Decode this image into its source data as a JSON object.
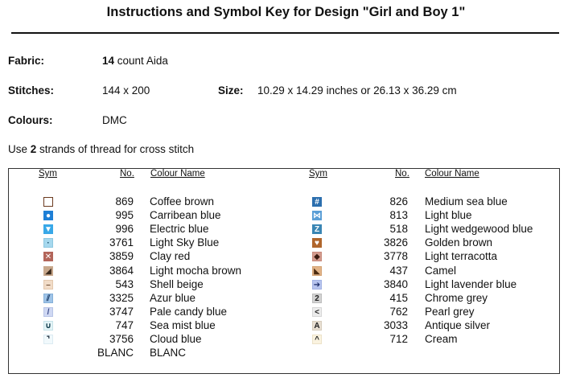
{
  "title": "Instructions and Symbol Key for Design \"Girl and Boy 1\"",
  "fabric": {
    "label": "Fabric:",
    "count": "14",
    "rest": " count Aida"
  },
  "stitches": {
    "label": "Stitches:",
    "value": "144 x 200"
  },
  "size": {
    "label": "Size:",
    "value": "10.29 x 14.29 inches or 26.13 x 36.29 cm"
  },
  "colours": {
    "label": "Colours:",
    "value": "DMC"
  },
  "note": {
    "pre": "Use ",
    "strands": "2",
    "post": " strands of thread for cross stitch"
  },
  "headers": {
    "sym": "Sym",
    "no": "No.",
    "name": "Colour Name"
  },
  "left_column": [
    {
      "no": "869",
      "name": "Coffee brown",
      "icon": "hollow-square-icon",
      "glyph": "",
      "bg": "#ffffff",
      "border": "#6b3a1f",
      "fg": "#6b3a1f"
    },
    {
      "no": "995",
      "name": "Carribean blue",
      "icon": "circle-icon",
      "glyph": "●",
      "bg": "#1e7fd6",
      "border": "#1e7fd6",
      "fg": "#ffffff"
    },
    {
      "no": "996",
      "name": "Electric blue",
      "icon": "triangle-down-icon",
      "glyph": "▼",
      "bg": "#38a8e8",
      "border": "#38a8e8",
      "fg": "#ffffff"
    },
    {
      "no": "3761",
      "name": "Light Sky Blue",
      "icon": "dot-icon",
      "glyph": "·",
      "bg": "#a6d8ee",
      "border": "#8ec8e0",
      "fg": "#1a4a66"
    },
    {
      "no": "3859",
      "name": "Clay red",
      "icon": "cross-icon",
      "glyph": "✕",
      "bg": "#b3655a",
      "border": "#b3655a",
      "fg": "#ffffff"
    },
    {
      "no": "3864",
      "name": "Light mocha brown",
      "icon": "diagonal-half-icon",
      "glyph": "◢",
      "bg": "#c8a88c",
      "border": "#c8a88c",
      "fg": "#3a2a1c"
    },
    {
      "no": "543",
      "name": "Shell beige",
      "icon": "dash-icon",
      "glyph": "–",
      "bg": "#f1dcc8",
      "border": "#e3c8ae",
      "fg": "#6b4a30"
    },
    {
      "no": "3325",
      "name": "Azur blue",
      "icon": "double-slash-icon",
      "glyph": "⫽",
      "bg": "#9fc4e8",
      "border": "#86b0d8",
      "fg": "#1a3a66"
    },
    {
      "no": "3747",
      "name": "Pale candy blue",
      "icon": "slash-icon",
      "glyph": "/",
      "bg": "#cfd8f3",
      "border": "#b8c4e6",
      "fg": "#3a4a88"
    },
    {
      "no": "747",
      "name": "Sea mist blue",
      "icon": "u-shape-icon",
      "glyph": "∪",
      "bg": "#e4f4f7",
      "border": "#c6e2e8",
      "fg": "#0e3a4a"
    },
    {
      "no": "3756",
      "name": "Cloud blue",
      "icon": "corner-icon",
      "glyph": "⌝",
      "bg": "#f1f9fc",
      "border": "#dcebf2",
      "fg": "#1a2a3a"
    },
    {
      "no": "BLANC",
      "name": "BLANC",
      "icon": "blank-icon",
      "glyph": "",
      "bg": "#ffffff",
      "border": "#ffffff",
      "fg": "#000000"
    }
  ],
  "right_column": [
    {
      "no": "826",
      "name": "Medium sea blue",
      "icon": "hash-icon",
      "glyph": "#",
      "bg": "#2c6fae",
      "border": "#2c6fae",
      "fg": "#ffffff"
    },
    {
      "no": "813",
      "name": "Light blue",
      "icon": "bowtie-icon",
      "glyph": "⋈",
      "bg": "#5a9ed6",
      "border": "#5a9ed6",
      "fg": "#ffffff"
    },
    {
      "no": "518",
      "name": "Light wedgewood blue",
      "icon": "z-icon",
      "glyph": "Z",
      "bg": "#3a86b4",
      "border": "#3a86b4",
      "fg": "#ffffff"
    },
    {
      "no": "3826",
      "name": "Golden brown",
      "icon": "heart-icon",
      "glyph": "♥",
      "bg": "#b0662c",
      "border": "#b0662c",
      "fg": "#ffffff"
    },
    {
      "no": "3778",
      "name": "Light terracotta",
      "icon": "diamond-icon",
      "glyph": "◆",
      "bg": "#d39b8e",
      "border": "#c88a7c",
      "fg": "#3a1a10"
    },
    {
      "no": "437",
      "name": "Camel",
      "icon": "corner-triangle-icon",
      "glyph": "◣",
      "bg": "#e2b488",
      "border": "#d4a374",
      "fg": "#4a2a10"
    },
    {
      "no": "3840",
      "name": "Light lavender blue",
      "icon": "arrow-right-icon",
      "glyph": "➔",
      "bg": "#b7c4ee",
      "border": "#a2b2e4",
      "fg": "#1a2a66"
    },
    {
      "no": "415",
      "name": "Chrome grey",
      "icon": "number-two-icon",
      "glyph": "2",
      "bg": "#d2d2d2",
      "border": "#bdbdbd",
      "fg": "#222222"
    },
    {
      "no": "762",
      "name": "Pearl grey",
      "icon": "less-than-icon",
      "glyph": "<",
      "bg": "#ececec",
      "border": "#d6d6d6",
      "fg": "#222222"
    },
    {
      "no": "3033",
      "name": "Antique silver",
      "icon": "letter-a-icon",
      "glyph": "A",
      "bg": "#e8dfd2",
      "border": "#d6ccbc",
      "fg": "#222222"
    },
    {
      "no": "712",
      "name": "Cream",
      "icon": "caret-icon",
      "glyph": "^",
      "bg": "#faf3e0",
      "border": "#ece2c8",
      "fg": "#222222"
    }
  ]
}
